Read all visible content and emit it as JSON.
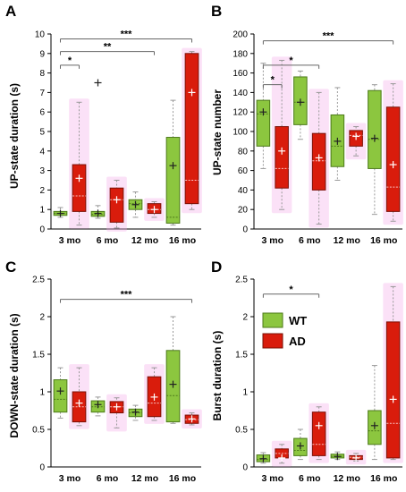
{
  "colors": {
    "wt_fill": "#8cc63f",
    "wt_edge": "#4d7a1a",
    "ad_fill": "#d91c0c",
    "ad_edge": "#7a1005",
    "ad_halo": "#f4a8e8",
    "whisker": "#999999",
    "sig_line": "#666666",
    "mean_mark": "#222222",
    "ad_mean_mark": "#ffffff"
  },
  "legend": {
    "wt_label": "WT",
    "ad_label": "AD"
  },
  "chart_data": [
    {
      "id": "A",
      "type": "box",
      "panel_label": "A",
      "ylabel": "UP-state duration (s)",
      "categories": [
        "3 mo",
        "6 mo",
        "12 mo",
        "16 mo"
      ],
      "ylim": [
        0,
        10
      ],
      "yticks": [
        0,
        1,
        2,
        3,
        4,
        5,
        6,
        7,
        8,
        9,
        10
      ],
      "series": [
        {
          "name": "WT",
          "boxes": [
            {
              "min": 0.6,
              "q1": 0.7,
              "median": 0.8,
              "q3": 0.9,
              "max": 1.1,
              "mean": 0.8
            },
            {
              "min": 0.55,
              "q1": 0.65,
              "median": 0.75,
              "q3": 0.9,
              "max": 1.2,
              "mean": 0.8,
              "outliers": [
                7.5
              ]
            },
            {
              "min": 0.6,
              "q1": 1.0,
              "median": 1.3,
              "q3": 1.5,
              "max": 1.9,
              "mean": 1.25
            },
            {
              "min": 0.2,
              "q1": 0.3,
              "median": 0.6,
              "q3": 4.7,
              "max": 6.6,
              "mean": 3.25
            }
          ]
        },
        {
          "name": "AD",
          "boxes": [
            {
              "min": 0.2,
              "q1": 0.9,
              "median": 1.7,
              "q3": 3.3,
              "max": 6.5,
              "mean": 2.6
            },
            {
              "min": 0.05,
              "q1": 0.35,
              "median": 1.5,
              "q3": 2.1,
              "max": 2.5,
              "mean": 1.5
            },
            {
              "min": 0.6,
              "q1": 0.8,
              "median": 1.0,
              "q3": 1.3,
              "max": 1.4,
              "mean": 1.0
            },
            {
              "min": 1.0,
              "q1": 1.3,
              "median": 2.5,
              "q3": 9.0,
              "max": 9.1,
              "mean": 7.0
            }
          ]
        }
      ],
      "significance": [
        {
          "from": 0,
          "to": 1,
          "y": 8.4,
          "label": "*"
        },
        {
          "from": 0,
          "to": 5,
          "y": 9.1,
          "label": "**"
        },
        {
          "from": 0,
          "to": 7,
          "y": 9.75,
          "label": "***"
        }
      ]
    },
    {
      "id": "B",
      "type": "box",
      "panel_label": "B",
      "ylabel": "UP-state number",
      "categories": [
        "3 mo",
        "6 mo",
        "12 mo",
        "16 mo"
      ],
      "ylim": [
        0,
        200
      ],
      "yticks": [
        0,
        20,
        40,
        60,
        80,
        100,
        120,
        140,
        160,
        180,
        200
      ],
      "series": [
        {
          "name": "WT",
          "boxes": [
            {
              "min": 62,
              "q1": 85,
              "median": 118,
              "q3": 132,
              "max": 170,
              "mean": 120
            },
            {
              "min": 92,
              "q1": 107,
              "median": 130,
              "q3": 156,
              "max": 162,
              "mean": 130
            },
            {
              "min": 50,
              "q1": 64,
              "median": 85,
              "q3": 117,
              "max": 145,
              "mean": 90
            },
            {
              "min": 15,
              "q1": 62,
              "median": 92,
              "q3": 142,
              "max": 148,
              "mean": 93
            }
          ]
        },
        {
          "name": "AD",
          "boxes": [
            {
              "min": 20,
              "q1": 42,
              "median": 62,
              "q3": 105,
              "max": 173,
              "mean": 80
            },
            {
              "min": 5,
              "q1": 40,
              "median": 70,
              "q3": 98,
              "max": 140,
              "mean": 73
            },
            {
              "min": 75,
              "q1": 85,
              "median": 96,
              "q3": 101,
              "max": 105,
              "mean": 95
            },
            {
              "min": 8,
              "q1": 18,
              "median": 43,
              "q3": 125,
              "max": 149,
              "mean": 66
            }
          ]
        }
      ],
      "significance": [
        {
          "from": 0,
          "to": 1,
          "y": 148,
          "label": "*"
        },
        {
          "from": 0,
          "to": 3,
          "y": 168,
          "label": "*"
        },
        {
          "from": 0,
          "to": 7,
          "y": 193,
          "label": "***"
        }
      ]
    },
    {
      "id": "C",
      "type": "box",
      "panel_label": "C",
      "ylabel": "DOWN-state duration (s)",
      "categories": [
        "3 mo",
        "6 mo",
        "12 mo",
        "16 mo"
      ],
      "ylim": [
        0,
        2.5
      ],
      "yticks": [
        0,
        0.5,
        1,
        1.5,
        2,
        2.5
      ],
      "series": [
        {
          "name": "WT",
          "boxes": [
            {
              "min": 0.65,
              "q1": 0.73,
              "median": 0.9,
              "q3": 1.16,
              "max": 1.32,
              "mean": 1.01
            },
            {
              "min": 0.68,
              "q1": 0.73,
              "median": 0.8,
              "q3": 0.88,
              "max": 0.93,
              "mean": 0.83
            },
            {
              "min": 0.62,
              "q1": 0.67,
              "median": 0.72,
              "q3": 0.77,
              "max": 0.82,
              "mean": 0.73
            },
            {
              "min": 0.58,
              "q1": 0.6,
              "median": 0.95,
              "q3": 1.55,
              "max": 2.0,
              "mean": 1.1
            }
          ]
        },
        {
          "name": "AD",
          "boxes": [
            {
              "min": 0.55,
              "q1": 0.6,
              "median": 0.8,
              "q3": 1.0,
              "max": 1.32,
              "mean": 0.85
            },
            {
              "min": 0.52,
              "q1": 0.72,
              "median": 0.8,
              "q3": 0.87,
              "max": 0.92,
              "mean": 0.8
            },
            {
              "min": 0.62,
              "q1": 0.67,
              "median": 0.85,
              "q3": 1.2,
              "max": 1.32,
              "mean": 0.93
            },
            {
              "min": 0.56,
              "q1": 0.58,
              "median": 0.63,
              "q3": 0.69,
              "max": 0.72,
              "mean": 0.64
            }
          ]
        }
      ],
      "significance": [
        {
          "from": 0,
          "to": 7,
          "y": 2.23,
          "label": "***"
        }
      ]
    },
    {
      "id": "D",
      "type": "box",
      "panel_label": "D",
      "ylabel": "Burst duration  (s)",
      "categories": [
        "3 mo",
        "6 mo",
        "12 mo",
        "16 mo"
      ],
      "ylim": [
        0,
        2.5
      ],
      "yticks": [
        0,
        0.5,
        1,
        1.5,
        2,
        2.5
      ],
      "series": [
        {
          "name": "WT",
          "boxes": [
            {
              "min": 0.05,
              "q1": 0.07,
              "median": 0.1,
              "q3": 0.16,
              "max": 0.19,
              "mean": 0.11
            },
            {
              "min": 0.1,
              "q1": 0.15,
              "median": 0.22,
              "q3": 0.38,
              "max": 0.5,
              "mean": 0.28
            },
            {
              "min": 0.1,
              "q1": 0.12,
              "median": 0.14,
              "q3": 0.17,
              "max": 0.2,
              "mean": 0.14
            },
            {
              "min": 0.1,
              "q1": 0.3,
              "median": 0.48,
              "q3": 0.75,
              "max": 1.35,
              "mean": 0.55
            }
          ]
        },
        {
          "name": "AD",
          "boxes": [
            {
              "min": 0.05,
              "q1": 0.12,
              "median": 0.18,
              "q3": 0.24,
              "max": 0.3,
              "mean": 0.12
            },
            {
              "min": 0.1,
              "q1": 0.15,
              "median": 0.3,
              "q3": 0.73,
              "max": 0.8,
              "mean": 0.55
            },
            {
              "min": 0.08,
              "q1": 0.1,
              "median": 0.13,
              "q3": 0.15,
              "max": 0.18,
              "mean": 0.12
            },
            {
              "min": 0.1,
              "q1": 0.12,
              "median": 0.58,
              "q3": 1.93,
              "max": 2.4,
              "mean": 0.9
            }
          ]
        }
      ],
      "significance": [
        {
          "from": 0,
          "to": 3,
          "y": 2.3,
          "label": "*"
        }
      ]
    }
  ]
}
